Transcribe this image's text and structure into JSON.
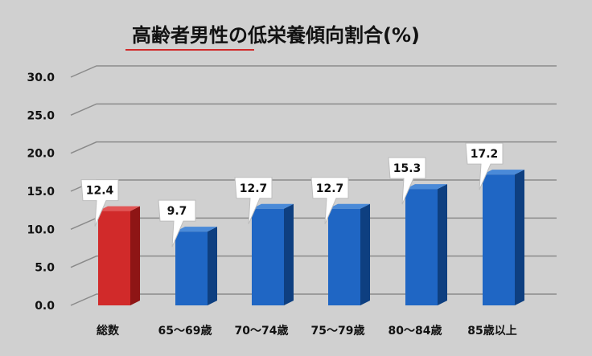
{
  "chart_data": {
    "type": "bar",
    "title": "高齢者男性の低栄養傾向割合(%)",
    "categories": [
      "総数",
      "65～69歳",
      "70～74歳",
      "75～79歳",
      "80～84歳",
      "85歳以上"
    ],
    "series": [
      {
        "values": [
          12.4,
          9.7,
          12.7,
          12.7,
          15.3,
          17.2
        ]
      }
    ],
    "data_labels": [
      "12.4",
      "9.7",
      "12.7",
      "12.7",
      "15.3",
      "17.2"
    ],
    "y_ticks": [
      "0.0",
      "5.0",
      "10.0",
      "15.0",
      "20.0",
      "25.0",
      "30.0"
    ],
    "ylim": [
      0,
      30
    ],
    "grid": true,
    "legend": "none",
    "colors": {
      "highlight": "#d12a2a",
      "highlight_side": "#8e1515",
      "highlight_top": "#e25555",
      "bar": "#1f66c4",
      "bar_side": "#0e3f80",
      "bar_top": "#4a8ad8",
      "title_underline": "#d12a2a",
      "grid": "#8a8a8a",
      "background": "#d0d0d0"
    }
  }
}
